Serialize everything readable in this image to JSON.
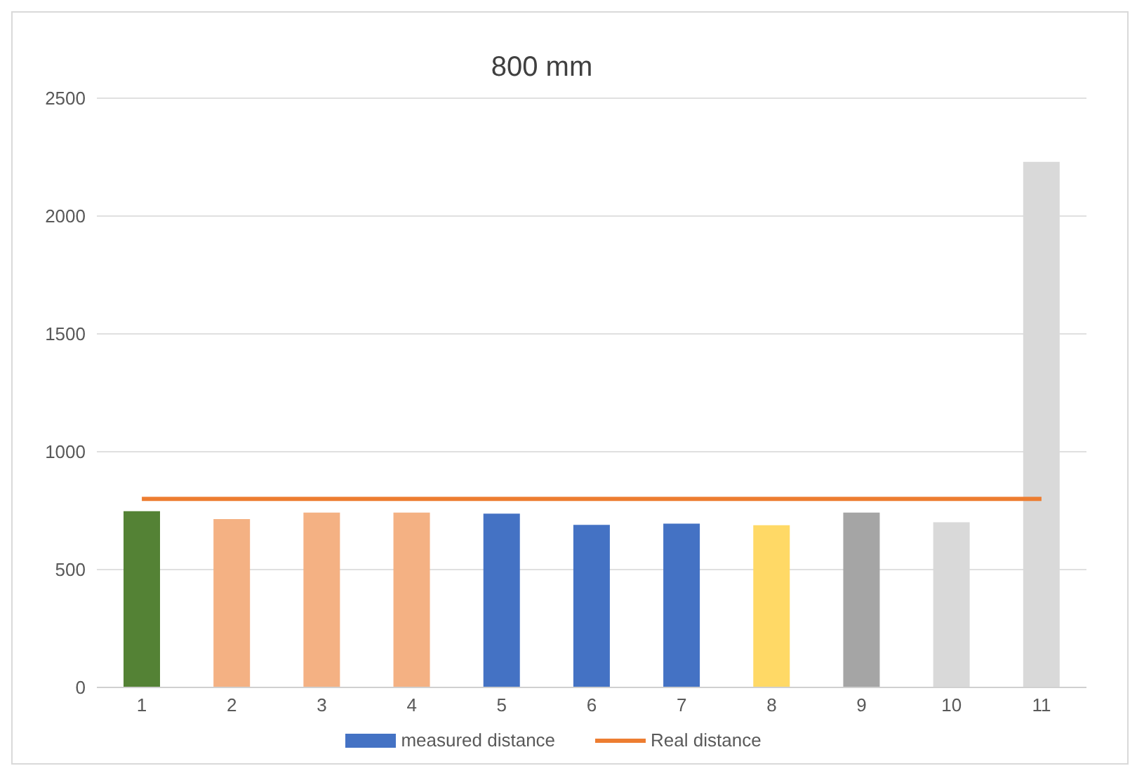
{
  "chart_data": {
    "type": "bar",
    "title": "800 mm",
    "categories": [
      "1",
      "2",
      "3",
      "4",
      "5",
      "6",
      "7",
      "8",
      "9",
      "10",
      "11"
    ],
    "series": [
      {
        "name": "measured distance",
        "color": "#4472c4",
        "colors": [
          "#548235",
          "#f4b183",
          "#f4b183",
          "#f4b183",
          "#4472c4",
          "#4472c4",
          "#4472c4",
          "#ffd966",
          "#a5a5a5",
          "#d9d9d9",
          "#d9d9d9"
        ],
        "values": [
          748,
          714,
          742,
          742,
          737,
          690,
          695,
          688,
          742,
          701,
          2230
        ]
      },
      {
        "name": "Real distance",
        "type": "line",
        "color": "#ed7d31",
        "marker": "none",
        "values": [
          800,
          800,
          800,
          800,
          800,
          800,
          800,
          800,
          800,
          800,
          800
        ]
      }
    ],
    "ylim": [
      0,
      2500
    ],
    "yticks": [
      0,
      500,
      1000,
      1500,
      2000,
      2500
    ],
    "grid": "y",
    "legend": "bottom"
  }
}
